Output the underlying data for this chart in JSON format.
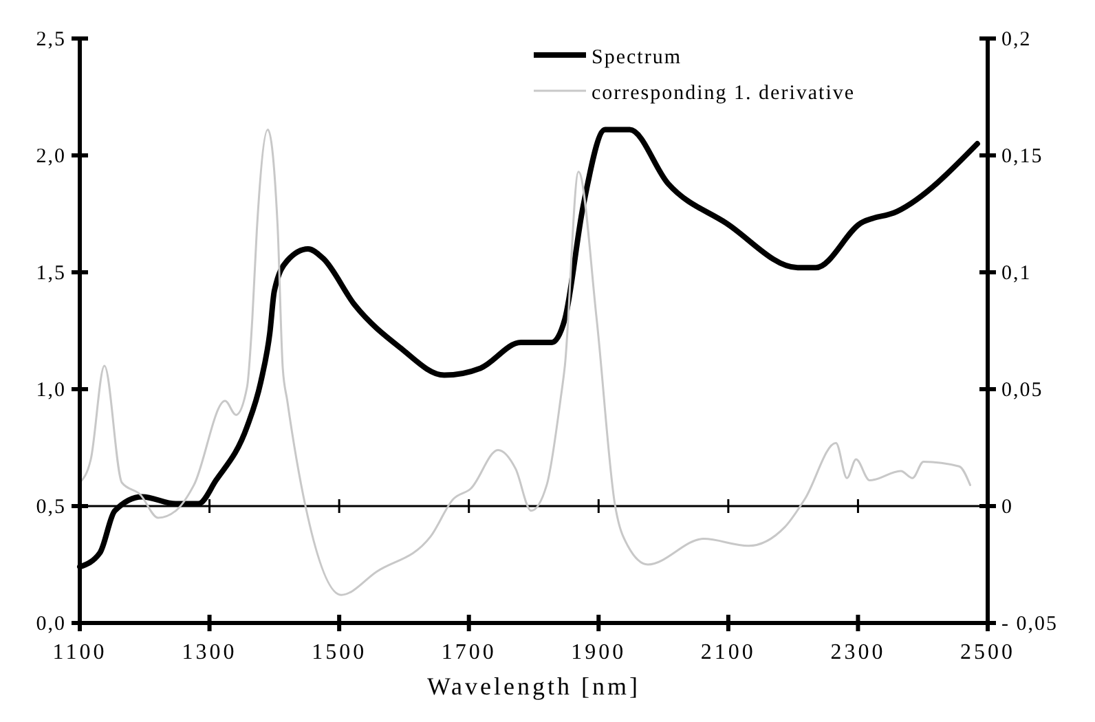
{
  "chart_data": {
    "type": "line",
    "xlabel": "Wavelength [nm]",
    "xlim": [
      1100,
      2500
    ],
    "xticks": [
      1100,
      1300,
      1500,
      1700,
      1900,
      2100,
      2300,
      2500
    ],
    "ylim": [
      0,
      2.5
    ],
    "yticks": [
      {
        "value": 0,
        "label": "0,0"
      },
      {
        "value": 0.5,
        "label": "0,5"
      },
      {
        "value": 1,
        "label": "1,0"
      },
      {
        "value": 1.5,
        "label": "1,5"
      },
      {
        "value": 2,
        "label": "2,0"
      },
      {
        "value": 2.5,
        "label": "2,5"
      }
    ],
    "y2lim": [
      -0.05,
      0.2
    ],
    "y2ticks": [
      {
        "value": -0.05,
        "label": "- 0,05"
      },
      {
        "value": 0,
        "label": "0"
      },
      {
        "value": 0.05,
        "label": "0,05"
      },
      {
        "value": 0.1,
        "label": "0,1"
      },
      {
        "value": 0.15,
        "label": "0,15"
      },
      {
        "value": 0.2,
        "label": "0,2"
      }
    ],
    "ref_lines": [
      {
        "axis": "y2",
        "value": 0,
        "color": "#000000"
      }
    ],
    "legend": "top right",
    "grid": false,
    "series": [
      {
        "name": "Spectrum",
        "color": "#000000",
        "x": [
          1100,
          1131,
          1154,
          1196,
          1248,
          1283,
          1310,
          1358,
          1379,
          1393,
          1400,
          1420,
          1452,
          1475,
          1524,
          1593,
          1662,
          1718,
          1780,
          1828,
          1848,
          1876,
          1910,
          1948,
          2007,
          2097,
          2207,
          2235,
          2304,
          2360,
          2484
        ],
        "values": [
          0.24,
          0.3,
          0.48,
          0.54,
          0.51,
          0.51,
          0.61,
          0.84,
          1.03,
          1.24,
          1.42,
          1.55,
          1.6,
          1.56,
          1.36,
          1.18,
          1.06,
          1.09,
          1.2,
          1.2,
          1.3,
          1.78,
          2.11,
          2.11,
          1.88,
          1.71,
          1.52,
          1.52,
          1.71,
          1.76,
          2.05
        ]
      },
      {
        "name": "corresponding 1. derivative",
        "color": "#c8c8c8",
        "axis": "y2",
        "x": [
          1100,
          1117,
          1138,
          1165,
          1193,
          1221,
          1248,
          1276,
          1324,
          1341,
          1358,
          1366,
          1373,
          1390,
          1405,
          1413,
          1420,
          1448,
          1503,
          1558,
          1641,
          1676,
          1703,
          1745,
          1772,
          1796,
          1820,
          1841,
          1848,
          1869,
          1897,
          1925,
          1945,
          1976,
          2062,
          2131,
          2187,
          2218,
          2266,
          2283,
          2297,
          2318,
          2366,
          2384,
          2401,
          2456,
          2473
        ],
        "values": [
          0.01,
          0.02,
          0.06,
          0.01,
          0.005,
          -0.005,
          -0.002,
          0.009,
          0.045,
          0.039,
          0.051,
          0.08,
          0.118,
          0.161,
          0.12,
          0.059,
          0.045,
          0.0,
          -0.038,
          -0.028,
          -0.013,
          0.003,
          0.0075,
          0.024,
          0.016,
          -0.002,
          0.009,
          0.045,
          0.06,
          0.143,
          0.08,
          0.001,
          -0.017,
          -0.025,
          -0.014,
          -0.017,
          -0.009,
          0.003,
          0.027,
          0.012,
          0.02,
          0.011,
          0.015,
          0.012,
          0.019,
          0.017,
          0.009
        ]
      }
    ]
  }
}
